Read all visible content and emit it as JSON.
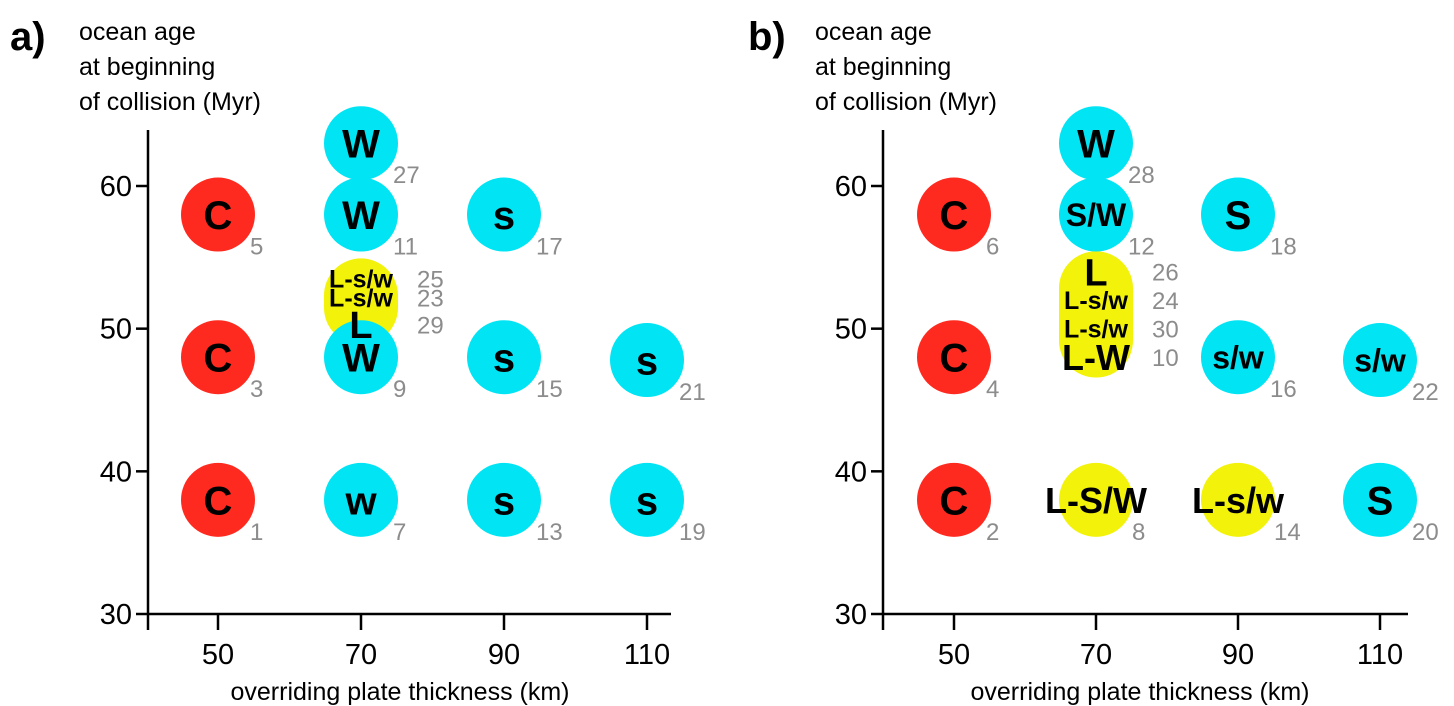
{
  "colors": {
    "collision": "#ff2a1f",
    "subduction": "#00e4f4",
    "layered": "#f2f20a",
    "run_number": "#8c8c8c"
  },
  "chart_data": [
    {
      "type": "scatter",
      "panel_label": "a)",
      "xlabel": "overriding plate thickness (km)",
      "ylabel_lines": [
        "ocean age",
        "at beginning",
        "of collision (Myr)"
      ],
      "xticks": [
        50,
        70,
        90,
        110
      ],
      "yticks": [
        30,
        40,
        50,
        60
      ],
      "xlim": [
        40,
        113
      ],
      "ylim": [
        30,
        64
      ],
      "points": [
        {
          "x": 50,
          "y": 58,
          "label": "C",
          "run": "5",
          "kind": "collision"
        },
        {
          "x": 50,
          "y": 48,
          "label": "C",
          "run": "3",
          "kind": "collision"
        },
        {
          "x": 50,
          "y": 38,
          "label": "C",
          "run": "1",
          "kind": "collision"
        },
        {
          "x": 70,
          "y": 63,
          "label": "W",
          "run": "27",
          "kind": "subduction"
        },
        {
          "x": 70,
          "y": 58,
          "label": "W",
          "run": "11",
          "kind": "subduction"
        },
        {
          "x": 70,
          "y": 48,
          "label": "W",
          "run": "9",
          "kind": "subduction"
        },
        {
          "x": 70,
          "y": 38,
          "label": "w",
          "run": "7",
          "kind": "subduction"
        },
        {
          "x": 70,
          "y": 53.5,
          "label": "L-s/w",
          "run": "25",
          "kind": "layered"
        },
        {
          "x": 70,
          "y": 52.2,
          "label": "L-s/w",
          "run": "23",
          "kind": "layered"
        },
        {
          "x": 70,
          "y": 50.3,
          "label": "L",
          "run": "29",
          "kind": "layered"
        },
        {
          "x": 90,
          "y": 58,
          "label": "s",
          "run": "17",
          "kind": "subduction"
        },
        {
          "x": 90,
          "y": 48,
          "label": "s",
          "run": "15",
          "kind": "subduction"
        },
        {
          "x": 90,
          "y": 38,
          "label": "s",
          "run": "13",
          "kind": "subduction"
        },
        {
          "x": 110,
          "y": 47.8,
          "label": "s",
          "run": "21",
          "kind": "subduction"
        },
        {
          "x": 110,
          "y": 38,
          "label": "s",
          "run": "19",
          "kind": "subduction"
        }
      ]
    },
    {
      "type": "scatter",
      "panel_label": "b)",
      "xlabel": "overriding plate thickness (km)",
      "ylabel_lines": [
        "ocean age",
        "at beginning",
        "of collision (Myr)"
      ],
      "xticks": [
        50,
        70,
        90,
        110
      ],
      "yticks": [
        30,
        40,
        50,
        60
      ],
      "xlim": [
        40,
        113
      ],
      "ylim": [
        30,
        64
      ],
      "points": [
        {
          "x": 50,
          "y": 58,
          "label": "C",
          "run": "6",
          "kind": "collision"
        },
        {
          "x": 50,
          "y": 48,
          "label": "C",
          "run": "4",
          "kind": "collision"
        },
        {
          "x": 50,
          "y": 38,
          "label": "C",
          "run": "2",
          "kind": "collision"
        },
        {
          "x": 70,
          "y": 63,
          "label": "W",
          "run": "28",
          "kind": "subduction"
        },
        {
          "x": 70,
          "y": 58,
          "label": "S/W",
          "run": "12",
          "kind": "subduction"
        },
        {
          "x": 70,
          "y": 54,
          "label": "L",
          "run": "26",
          "kind": "layered"
        },
        {
          "x": 70,
          "y": 52,
          "label": "L-s/w",
          "run": "24",
          "kind": "layered"
        },
        {
          "x": 70,
          "y": 50,
          "label": "L-s/w",
          "run": "30",
          "kind": "layered"
        },
        {
          "x": 70,
          "y": 48,
          "label": "L-W",
          "run": "10",
          "kind": "layered"
        },
        {
          "x": 70,
          "y": 38,
          "label": "L-S/W",
          "run": "8",
          "kind": "layered"
        },
        {
          "x": 90,
          "y": 58,
          "label": "S",
          "run": "18",
          "kind": "subduction"
        },
        {
          "x": 90,
          "y": 48,
          "label": "s/w",
          "run": "16",
          "kind": "subduction"
        },
        {
          "x": 90,
          "y": 38,
          "label": "L-s/w",
          "run": "14",
          "kind": "layered"
        },
        {
          "x": 110,
          "y": 47.8,
          "label": "s/w",
          "run": "22",
          "kind": "subduction"
        },
        {
          "x": 110,
          "y": 38,
          "label": "S",
          "run": "20",
          "kind": "subduction"
        }
      ]
    }
  ]
}
